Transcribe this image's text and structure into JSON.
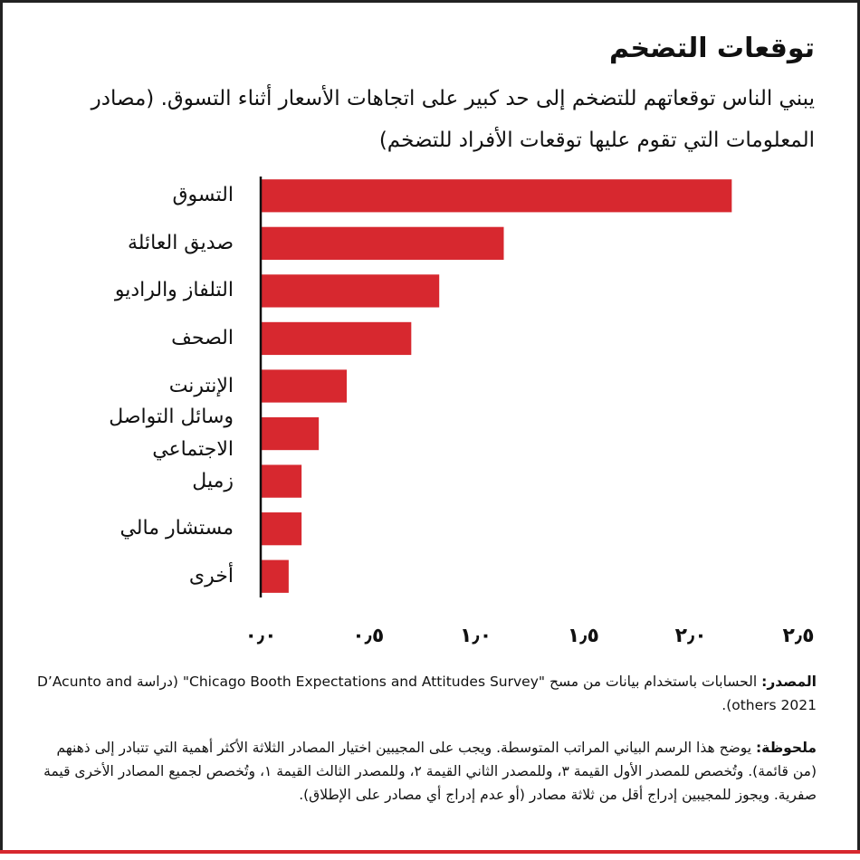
{
  "chart_data": {
    "type": "hbar",
    "title": "توقعات التضخم",
    "subtitle": "يبني الناس توقعاتهم للتضخم إلى حد كبير على اتجاهات الأسعار أثناء التسوق. (مصادر المعلومات التي تقوم عليها توقعات الأفراد للتضخم)",
    "categories": [
      "التسوق",
      "صديق العائلة",
      "التلفاز والراديو",
      "الصحف",
      "الإنترنت",
      "وسائل التواصل الاجتماعي",
      "زميل",
      "مستشار مالي",
      "أخرى"
    ],
    "values": [
      2.19,
      1.13,
      0.83,
      0.7,
      0.4,
      0.27,
      0.19,
      0.19,
      0.13
    ],
    "color": "#d7282f",
    "xlim": [
      0,
      2.5
    ],
    "xticks": [
      {
        "value": 0,
        "label": "٠٫٠"
      },
      {
        "value": 0.5,
        "label": "٠٫٥"
      },
      {
        "value": 1,
        "label": "١٫٠"
      },
      {
        "value": 1.5,
        "label": "١٫٥"
      },
      {
        "value": 2,
        "label": "٢٫٠"
      },
      {
        "value": 2.5,
        "label": "٢٫٥"
      }
    ],
    "grid": false,
    "source_label": "المصدر:",
    "source": " الحسابات باستخدام بيانات من مسح \"Chicago Booth Expectations and Attitudes Survey\" (دراسة D’Acunto and others 2021).",
    "note_label": "ملحوظة:",
    "note": " يوضح هذا الرسم البياني المراتب المتوسطة. ويجب على المجيبين اختيار المصادر الثلاثة الأكثر أهمية التي تتبادر إلى ذهنهم (من قائمة). وتُخصص للمصدر الأول القيمة ٣، وللمصدر الثاني القيمة ٢، وللمصدر الثالث القيمة ١، وتُخصص لجميع المصادر الأخرى قيمة صفرية. ويجوز للمجيبين إدراج أقل من ثلاثة مصادر (أو عدم إدراج أي مصادر على الإطلاق)."
  }
}
